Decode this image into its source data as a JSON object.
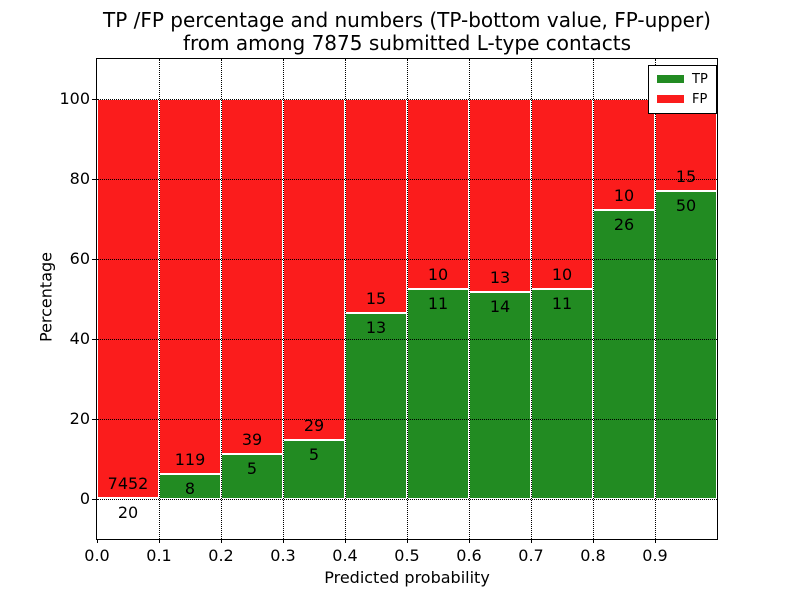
{
  "figure": {
    "title_line1": "TP /FP percentage and numbers (TP-bottom value, FP-upper)",
    "title_line2": "from among 7875 submitted L-type contacts"
  },
  "axes": {
    "xlabel": "Predicted probability",
    "ylabel": "Percentage",
    "xtick_labels": [
      "0.0",
      "0.1",
      "0.2",
      "0.3",
      "0.4",
      "0.5",
      "0.6",
      "0.7",
      "0.8",
      "0.9"
    ],
    "ytick_values": [
      0,
      20,
      40,
      60,
      80,
      100
    ]
  },
  "legend": {
    "items": [
      {
        "label": "TP",
        "color": "#228b22"
      },
      {
        "label": "FP",
        "color": "#fb1c1c"
      }
    ]
  },
  "chart_data": {
    "type": "bar",
    "stacked": true,
    "title": "TP /FP percentage and numbers (TP-bottom value, FP-upper) from among 7875 submitted L-type contacts",
    "xlabel": "Predicted probability",
    "ylabel": "Percentage",
    "xlim": [
      0.0,
      1.0
    ],
    "ylim": [
      -10,
      110
    ],
    "yticks": [
      0,
      20,
      40,
      60,
      80,
      100
    ],
    "grid": "dotted, both axes, drawn over bars",
    "legend_position": "upper right",
    "total_submitted": 7875,
    "bin_width": 0.1,
    "series_colors": {
      "TP": "#228b22",
      "FP": "#fb1c1c"
    },
    "bins": [
      {
        "x_start": 0.0,
        "x_end": 0.1,
        "tp_count": 20,
        "fp_count": 7452,
        "tp_percent": 0.27,
        "fp_percent": 99.73
      },
      {
        "x_start": 0.1,
        "x_end": 0.2,
        "tp_count": 8,
        "fp_count": 119,
        "tp_percent": 6.3,
        "fp_percent": 93.7
      },
      {
        "x_start": 0.2,
        "x_end": 0.3,
        "tp_count": 5,
        "fp_count": 39,
        "tp_percent": 11.36,
        "fp_percent": 88.64
      },
      {
        "x_start": 0.3,
        "x_end": 0.4,
        "tp_count": 5,
        "fp_count": 29,
        "tp_percent": 14.71,
        "fp_percent": 85.29
      },
      {
        "x_start": 0.4,
        "x_end": 0.5,
        "tp_count": 13,
        "fp_count": 15,
        "tp_percent": 46.43,
        "fp_percent": 53.57
      },
      {
        "x_start": 0.5,
        "x_end": 0.6,
        "tp_count": 11,
        "fp_count": 10,
        "tp_percent": 52.38,
        "fp_percent": 47.62
      },
      {
        "x_start": 0.6,
        "x_end": 0.7,
        "tp_count": 14,
        "fp_count": 13,
        "tp_percent": 51.85,
        "fp_percent": 48.15
      },
      {
        "x_start": 0.7,
        "x_end": 0.8,
        "tp_count": 11,
        "fp_count": 10,
        "tp_percent": 52.38,
        "fp_percent": 47.62
      },
      {
        "x_start": 0.8,
        "x_end": 0.9,
        "tp_count": 26,
        "fp_count": 10,
        "tp_percent": 72.22,
        "fp_percent": 27.78
      },
      {
        "x_start": 0.9,
        "x_end": 1.0,
        "tp_count": 50,
        "fp_count": 15,
        "tp_percent": 76.92,
        "fp_percent": 23.08
      }
    ]
  }
}
